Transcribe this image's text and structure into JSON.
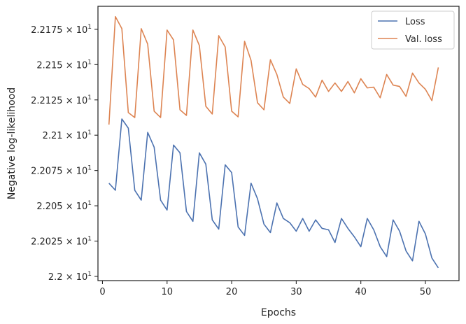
{
  "chart_data": {
    "type": "line",
    "xlabel": "Epochs",
    "ylabel": "Negative log-likelihood",
    "xlim": [
      -0.7,
      55.2
    ],
    "ylim": [
      21.997,
      22.1913
    ],
    "grid": false,
    "legend_position": "top-right",
    "x_ticks": [
      {
        "value": 0,
        "label": "0"
      },
      {
        "value": 10,
        "label": "10"
      },
      {
        "value": 20,
        "label": "20"
      },
      {
        "value": 30,
        "label": "30"
      },
      {
        "value": 40,
        "label": "40"
      },
      {
        "value": 50,
        "label": "50"
      }
    ],
    "y_ticks": [
      {
        "value": 22.0,
        "mantissa": "2.2",
        "exponent": "1"
      },
      {
        "value": 22.025,
        "mantissa": "2.2025",
        "exponent": "1"
      },
      {
        "value": 22.05,
        "mantissa": "2.205",
        "exponent": "1"
      },
      {
        "value": 22.075,
        "mantissa": "2.2075",
        "exponent": "1"
      },
      {
        "value": 22.1,
        "mantissa": "2.21",
        "exponent": "1"
      },
      {
        "value": 22.125,
        "mantissa": "2.2125",
        "exponent": "1"
      },
      {
        "value": 22.15,
        "mantissa": "2.215",
        "exponent": "1"
      },
      {
        "value": 22.175,
        "mantissa": "2.2175",
        "exponent": "1"
      }
    ],
    "x": [
      1,
      2,
      3,
      4,
      5,
      6,
      7,
      8,
      9,
      10,
      11,
      12,
      13,
      14,
      15,
      16,
      17,
      18,
      19,
      20,
      21,
      22,
      23,
      24,
      25,
      26,
      27,
      28,
      29,
      30,
      31,
      32,
      33,
      34,
      35,
      36,
      37,
      38,
      39,
      40,
      41,
      42,
      43,
      44,
      45,
      46,
      47,
      48,
      49,
      50,
      51,
      52
    ],
    "series": [
      {
        "name": "Loss",
        "color": "#4c72b0",
        "values": [
          22.066,
          22.061,
          22.1115,
          22.105,
          22.061,
          22.054,
          22.102,
          22.0915,
          22.054,
          22.047,
          22.093,
          22.0875,
          22.046,
          22.039,
          22.0875,
          22.0795,
          22.04,
          22.0335,
          22.079,
          22.0735,
          22.035,
          22.029,
          22.066,
          22.055,
          22.037,
          22.031,
          22.052,
          22.041,
          22.038,
          22.032,
          22.041,
          22.032,
          22.04,
          22.034,
          22.033,
          22.024,
          22.041,
          22.034,
          22.028,
          22.021,
          22.041,
          22.033,
          22.021,
          22.014,
          22.04,
          22.032,
          22.018,
          22.011,
          22.039,
          22.03,
          22.013,
          22.006
        ]
      },
      {
        "name": "Val. loss",
        "color": "#dd8452",
        "values": [
          22.1075,
          22.184,
          22.1755,
          22.116,
          22.1125,
          22.1755,
          22.1645,
          22.117,
          22.1125,
          22.1745,
          22.1675,
          22.118,
          22.114,
          22.1745,
          22.1635,
          22.1205,
          22.115,
          22.1705,
          22.1625,
          22.117,
          22.113,
          22.1665,
          22.153,
          22.123,
          22.118,
          22.1535,
          22.143,
          22.127,
          22.1225,
          22.147,
          22.136,
          22.133,
          22.127,
          22.139,
          22.131,
          22.137,
          22.131,
          22.138,
          22.13,
          22.14,
          22.1335,
          22.134,
          22.1265,
          22.143,
          22.1355,
          22.1345,
          22.1275,
          22.144,
          22.137,
          22.1325,
          22.1245,
          22.148
        ]
      }
    ]
  }
}
